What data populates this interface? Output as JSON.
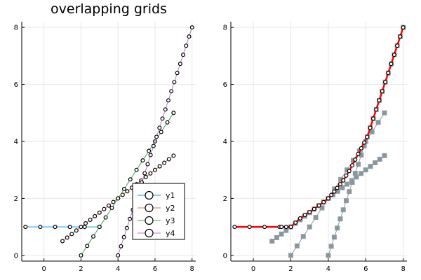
{
  "colors": {
    "y1": "#009AFA",
    "y2": "#E36F47",
    "y3": "#3EA44E",
    "y4": "#C371D2",
    "marker_fill": "#ffffff",
    "marker_stroke": "#000000",
    "combined": "#FF0000",
    "square_fill": "#7F9AA5",
    "square_stroke": "#9A9A9A",
    "grid": "#E6E6E6"
  },
  "chart_data": [
    {
      "type": "line",
      "title": "overlapping grids",
      "xlabel": "",
      "ylabel": "",
      "xlim": [
        -1.2,
        8.2
      ],
      "ylim": [
        -0.2,
        8.2
      ],
      "xticks": [
        0,
        2,
        4,
        6,
        8
      ],
      "yticks": [
        0,
        2,
        4,
        6,
        8
      ],
      "grid": true,
      "legend": "bottom-right",
      "series": [
        {
          "name": "y1",
          "x": [
            -1.0,
            -0.2,
            0.6,
            1.4,
            2.2,
            3.0
          ],
          "y": [
            1.0,
            1.0,
            1.0,
            1.0,
            1.0,
            1.0
          ]
        },
        {
          "name": "y2",
          "x": [
            1.0,
            1.25,
            1.5,
            1.75,
            2.0,
            2.25,
            2.5,
            2.75,
            3.0,
            3.25,
            3.5,
            3.75,
            4.0,
            4.25,
            4.5,
            4.75,
            5.0,
            5.25,
            5.5,
            5.75,
            6.0,
            6.25,
            6.5,
            6.75,
            7.0
          ],
          "y": [
            0.5,
            0.625,
            0.75,
            0.875,
            1.0,
            1.125,
            1.25,
            1.375,
            1.5,
            1.625,
            1.75,
            1.875,
            2.0,
            2.125,
            2.25,
            2.375,
            2.5,
            2.625,
            2.75,
            2.875,
            3.0,
            3.125,
            3.25,
            3.375,
            3.5
          ]
        },
        {
          "name": "y3",
          "x": [
            2.0,
            2.333,
            2.667,
            3.0,
            3.333,
            3.667,
            4.0,
            4.333,
            4.667,
            5.0,
            5.333,
            5.667,
            6.0,
            6.333,
            6.667,
            7.0
          ],
          "y": [
            0.0,
            0.333,
            0.667,
            1.0,
            1.333,
            1.667,
            2.0,
            2.333,
            2.667,
            3.0,
            3.333,
            3.667,
            4.0,
            4.333,
            4.667,
            5.0
          ]
        },
        {
          "name": "y4",
          "x": [
            4.0,
            4.16,
            4.32,
            4.48,
            4.64,
            4.8,
            4.96,
            5.12,
            5.28,
            5.44,
            5.6,
            5.76,
            5.92,
            6.08,
            6.24,
            6.4,
            6.56,
            6.72,
            6.88,
            7.04,
            7.2,
            7.36,
            7.52,
            7.68,
            7.84,
            8.0
          ],
          "y": [
            0.0,
            0.32,
            0.64,
            0.96,
            1.28,
            1.6,
            1.92,
            2.24,
            2.56,
            2.88,
            3.2,
            3.52,
            3.84,
            4.16,
            4.48,
            4.8,
            5.12,
            5.44,
            5.76,
            6.08,
            6.4,
            6.72,
            7.04,
            7.36,
            7.68,
            8.0
          ]
        }
      ]
    },
    {
      "type": "line",
      "title": "",
      "xlabel": "",
      "ylabel": "",
      "xlim": [
        -1.2,
        8.2
      ],
      "ylim": [
        -0.2,
        8.2
      ],
      "xticks": [
        0,
        2,
        4,
        6,
        8
      ],
      "yticks": [
        0,
        2,
        4,
        6,
        8
      ],
      "grid": true,
      "legend": "none",
      "series": [
        {
          "name": "",
          "style": "squares",
          "x": [
            1.0,
            1.25,
            1.5,
            1.75,
            2.0,
            2.25,
            2.5,
            2.75,
            3.0,
            3.25,
            3.5,
            3.75,
            4.0,
            4.25,
            4.5,
            4.75,
            5.0,
            5.25,
            5.5,
            5.75,
            6.0,
            6.25,
            6.5,
            6.75,
            7.0
          ],
          "y": [
            0.5,
            0.625,
            0.75,
            0.875,
            1.0,
            1.125,
            1.25,
            1.375,
            1.5,
            1.625,
            1.75,
            1.875,
            2.0,
            2.125,
            2.25,
            2.375,
            2.5,
            2.625,
            2.75,
            2.875,
            3.0,
            3.125,
            3.25,
            3.375,
            3.5
          ]
        },
        {
          "name": "",
          "style": "squares",
          "x": [
            2.0,
            2.333,
            2.667,
            3.0,
            3.333,
            3.667,
            4.0,
            4.333,
            4.667,
            5.0,
            5.333,
            5.667,
            6.0,
            6.333,
            6.667,
            7.0
          ],
          "y": [
            0.0,
            0.333,
            0.667,
            1.0,
            1.333,
            1.667,
            2.0,
            2.333,
            2.667,
            3.0,
            3.333,
            3.667,
            4.0,
            4.333,
            4.667,
            5.0
          ]
        },
        {
          "name": "",
          "style": "squares",
          "x": [
            4.0,
            4.16,
            4.32,
            4.48,
            4.64,
            4.8,
            4.96,
            5.12,
            5.28,
            5.44,
            5.6,
            5.76,
            5.92,
            6.08,
            6.24,
            6.4,
            6.56,
            6.72,
            6.88,
            7.04,
            7.2,
            7.36,
            7.52,
            7.68,
            7.84,
            8.0
          ],
          "y": [
            0.0,
            0.32,
            0.64,
            0.96,
            1.28,
            1.6,
            1.92,
            2.24,
            2.56,
            2.88,
            3.2,
            3.52,
            3.84,
            4.16,
            4.48,
            4.8,
            5.12,
            5.44,
            5.76,
            6.08,
            6.4,
            6.72,
            7.04,
            7.36,
            7.68,
            8.0
          ]
        },
        {
          "name": "",
          "style": "line-circles",
          "x": [
            -1.0,
            -0.2,
            0.6,
            1.4,
            1.5,
            1.75,
            2.0,
            2.25,
            2.5,
            2.75,
            3.0,
            3.25,
            3.5,
            3.75,
            4.0,
            4.16,
            4.32,
            4.48,
            4.64,
            4.8,
            4.96,
            5.12,
            5.28,
            5.44,
            5.6,
            5.76,
            5.92,
            6.08,
            6.24,
            6.4,
            6.56,
            6.72,
            6.88,
            7.04,
            7.2,
            7.36,
            7.52,
            7.68,
            7.84,
            8.0
          ],
          "y": [
            1.0,
            1.0,
            1.0,
            1.0,
            1.0,
            1.0,
            1.0,
            1.15,
            1.3,
            1.42,
            1.52,
            1.63,
            1.75,
            1.87,
            2.0,
            2.12,
            2.24,
            2.37,
            2.5,
            2.63,
            2.8,
            2.96,
            3.16,
            3.36,
            3.56,
            3.76,
            3.96,
            4.16,
            4.48,
            4.8,
            5.12,
            5.44,
            5.76,
            6.08,
            6.4,
            6.72,
            7.04,
            7.36,
            7.68,
            8.0
          ]
        }
      ]
    }
  ]
}
